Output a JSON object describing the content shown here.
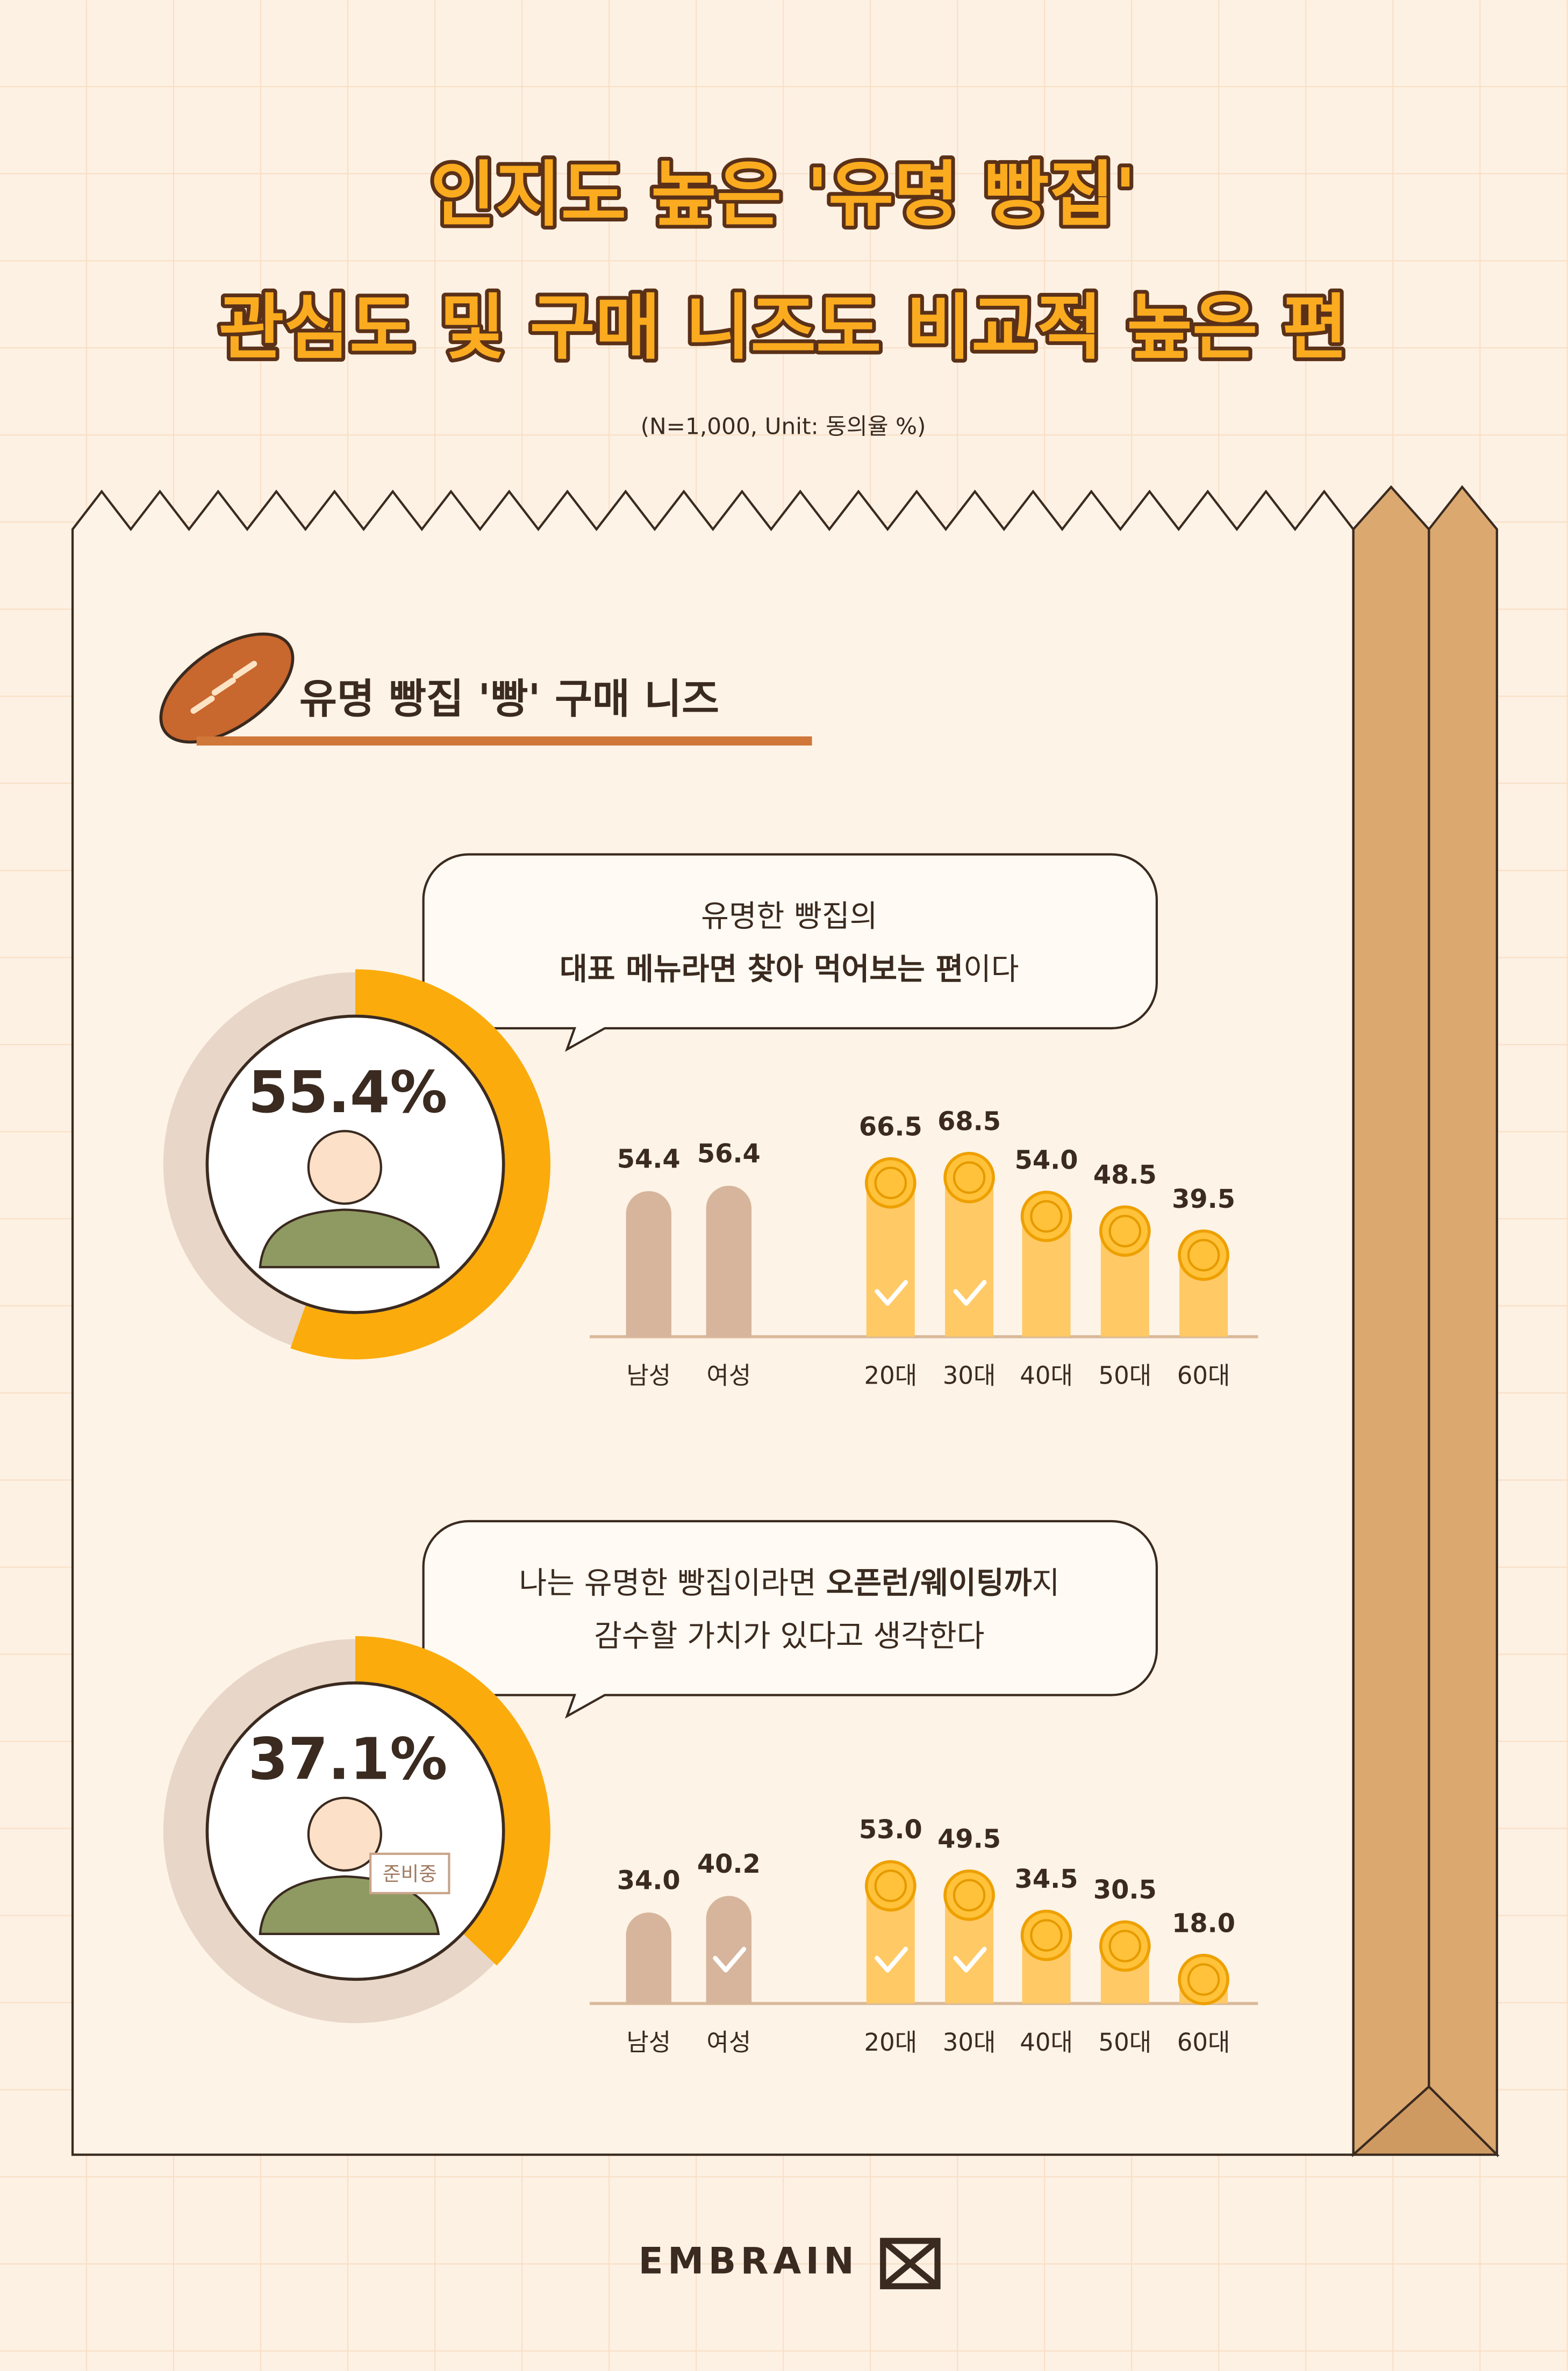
{
  "header": {
    "title": [
      "인지도 높은 '유명 빵집'",
      "관심도 및 구매 니즈도 비교적 높은 편"
    ],
    "note": "(N=1,000, Unit: 동의율 %)"
  },
  "section_title": "유명 빵집 '빵' 구매 니즈",
  "chart_data": [
    {
      "type": "bar",
      "question": [
        [
          {
            "text": "유명한 빵집의"
          }
        ],
        [
          {
            "text": "대표 메뉴라면 찾아 먹어보는 편",
            "bold": true
          },
          {
            "text": "이다"
          }
        ]
      ],
      "overall": 55.4,
      "overall_label": "55.4%",
      "ring_color": "#fbab0b",
      "categories": [
        "남성",
        "여성",
        "20대",
        "30대",
        "40대",
        "50대",
        "60대"
      ],
      "values": [
        54.4,
        56.4,
        66.5,
        68.5,
        54.0,
        48.5,
        39.5
      ],
      "value_labels": [
        "54.4",
        "56.4",
        "66.5",
        "68.5",
        "54.0",
        "48.5",
        "39.5"
      ],
      "colors": [
        "#d6b59c",
        "#d6b59c",
        "#ffc966",
        "#ffc966",
        "#ffc966",
        "#ffc966",
        "#ffc966"
      ],
      "checked": [
        false,
        false,
        true,
        true,
        false,
        false,
        false
      ],
      "ylim": [
        0,
        100
      ]
    },
    {
      "type": "bar",
      "question": [
        [
          {
            "text": "나는 유명한 빵집이라면 "
          },
          {
            "text": "오픈런/웨이팅까",
            "bold": true
          },
          {
            "text": "지"
          }
        ],
        [
          {
            "text": "감수할 가치가 있다고 생각한다"
          }
        ]
      ],
      "overall": 37.1,
      "overall_label": "37.1%",
      "ring_color": "#fbab0b",
      "badge": "준비중",
      "categories": [
        "남성",
        "여성",
        "20대",
        "30대",
        "40대",
        "50대",
        "60대"
      ],
      "values": [
        34.0,
        40.2,
        53.0,
        49.5,
        34.5,
        30.5,
        18.0
      ],
      "value_labels": [
        "34.0",
        "40.2",
        "53.0",
        "49.5",
        "34.5",
        "30.5",
        "18.0"
      ],
      "colors": [
        "#d6b59c",
        "#d6b59c",
        "#ffc966",
        "#ffc966",
        "#ffc966",
        "#ffc966",
        "#ffc966"
      ],
      "checked": [
        false,
        true,
        true,
        true,
        false,
        false,
        false
      ],
      "ylim": [
        0,
        100
      ]
    }
  ],
  "footer": {
    "brand": "EMBRAIN"
  }
}
